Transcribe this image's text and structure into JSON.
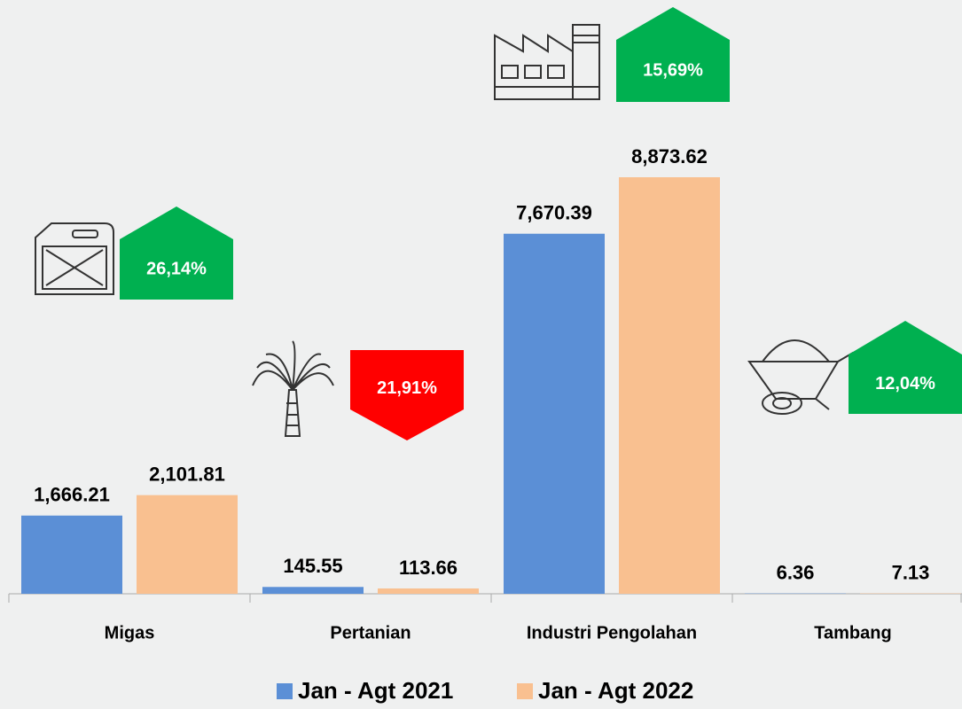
{
  "chart_data": {
    "type": "bar",
    "categories": [
      "Migas",
      "Pertanian",
      "Industri Pengolahan",
      "Tambang"
    ],
    "series": [
      {
        "name": "Jan - Agt 2021",
        "color": "#5b8fd6",
        "values": [
          1666.21,
          145.55,
          7670.39,
          6.36
        ],
        "value_labels": [
          "1,666.21",
          "145.55",
          "7,670.39",
          "6.36"
        ]
      },
      {
        "name": "Jan - Agt 2022",
        "color": "#f9c090",
        "values": [
          2101.81,
          113.66,
          8873.62,
          7.13
        ],
        "value_labels": [
          "2,101.81",
          "113.66",
          "8,873.62",
          "7.13"
        ]
      }
    ],
    "annotations": [
      {
        "text": "26,14%",
        "color": "#00b050",
        "direction": "up"
      },
      {
        "text": "21,91%",
        "color": "#ff0000",
        "direction": "down"
      },
      {
        "text": "15,69%",
        "color": "#00b050",
        "direction": "up"
      },
      {
        "text": "12,04%",
        "color": "#00b050",
        "direction": "up"
      }
    ],
    "legend": "bottom"
  }
}
